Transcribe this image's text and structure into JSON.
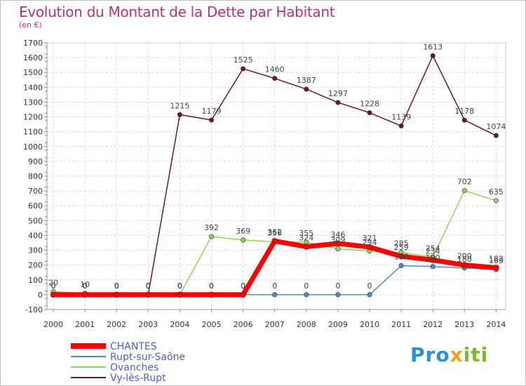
{
  "title": "Evolution du Montant de la Dette par Habitant",
  "subtitle": "(en €)",
  "logo": {
    "p1": "Pro",
    "p2": "x",
    "p3": "iti"
  },
  "chart_data": {
    "type": "line",
    "title": "Evolution du Montant de la Dette par Habitant",
    "ylabel": "(en €)",
    "xlabel": "",
    "x": [
      "2000",
      "2001",
      "2002",
      "2003",
      "2004",
      "2005",
      "2006",
      "2007",
      "2008",
      "2009",
      "2010",
      "2011",
      "2012",
      "2013",
      "2014"
    ],
    "ylim": [
      -100,
      1700
    ],
    "yticks": [
      -100,
      0,
      100,
      200,
      300,
      400,
      500,
      600,
      700,
      800,
      900,
      1000,
      1100,
      1200,
      1300,
      1400,
      1500,
      1600,
      1700
    ],
    "legend_position": "bottom-left",
    "series": [
      {
        "name": "Vy-lès-Rupt",
        "color": "#6b1a1a",
        "values": [
          0,
          0,
          0,
          0,
          1215,
          1179,
          1525,
          1460,
          1387,
          1297,
          1228,
          1139,
          1613,
          1178,
          1074
        ]
      },
      {
        "name": "Ovanches",
        "color": "#8ed65a",
        "values": [
          20,
          10,
          0,
          0,
          0,
          392,
          369,
          356,
          355,
          309,
          294,
          285,
          254,
          702,
          635
        ]
      },
      {
        "name": "Rupt-sur-Saône",
        "color": "#4a90c8",
        "values": [
          0,
          0,
          0,
          0,
          0,
          0,
          0,
          0,
          0,
          0,
          0,
          196,
          190,
          180,
          169
        ]
      },
      {
        "name": "CHANTES",
        "color": "#ff0000",
        "values": [
          0,
          0,
          0,
          0,
          0,
          0,
          0,
          362,
          324,
          346,
          321,
          259,
          234,
          200,
          182
        ]
      }
    ]
  }
}
